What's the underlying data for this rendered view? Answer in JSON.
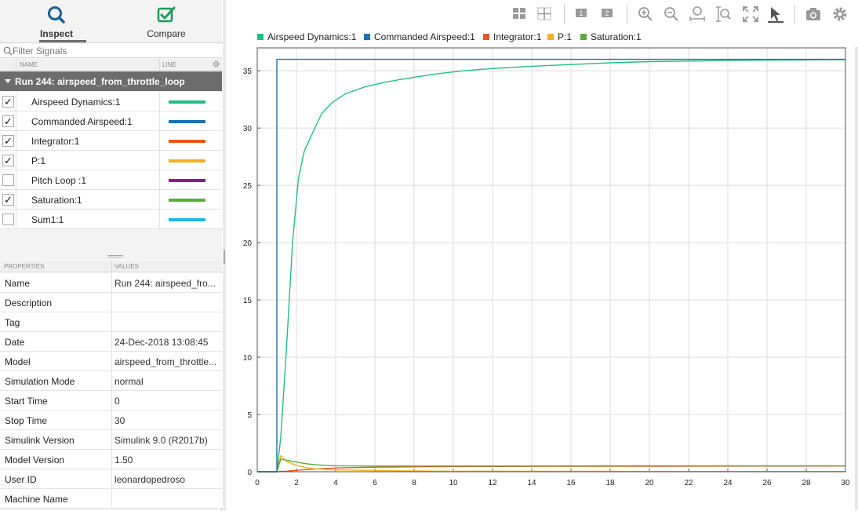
{
  "modes": {
    "inspect": {
      "label": "Inspect",
      "icon": "search-icon"
    },
    "compare": {
      "label": "Compare",
      "icon": "compare-checkbox-icon"
    }
  },
  "filter": {
    "placeholder": "Filter Signals"
  },
  "signal_table": {
    "headers": {
      "name": "NAME",
      "line": "LINE"
    },
    "run": {
      "label": "Run 244: airspeed_from_throttle_loop",
      "expanded": true
    },
    "signals": [
      {
        "name": "Airspeed Dynamics:1",
        "checked": true,
        "check_mark": "✓",
        "color": "#1fbf83"
      },
      {
        "name": "Commanded Airspeed:1",
        "checked": true,
        "check_mark": "✓",
        "color": "#1f6fb4"
      },
      {
        "name": "Integrator:1",
        "checked": true,
        "check_mark": "✓",
        "color": "#e8541c"
      },
      {
        "name": "P:1",
        "checked": true,
        "check_mark": "✓",
        "color": "#f0b11c"
      },
      {
        "name": "Pitch Loop :1",
        "checked": false,
        "check_mark": "",
        "color": "#8b1a93"
      },
      {
        "name": "Saturation:1",
        "checked": true,
        "check_mark": "✓",
        "color": "#5aac3e"
      },
      {
        "name": "Sum1:1",
        "checked": false,
        "check_mark": "",
        "color": "#21b6e6"
      }
    ]
  },
  "properties": {
    "headers": {
      "key": "PROPERTIES",
      "value": "VALUES"
    },
    "rows": [
      {
        "key": "Name",
        "value": "Run 244: airspeed_fro..."
      },
      {
        "key": "Description",
        "value": ""
      },
      {
        "key": "Tag",
        "value": ""
      },
      {
        "key": "Date",
        "value": "24-Dec-2018 13:08:45"
      },
      {
        "key": "Model",
        "value": "airspeed_from_throttle..."
      },
      {
        "key": "Simulation Mode",
        "value": "normal"
      },
      {
        "key": "Start Time",
        "value": "0"
      },
      {
        "key": "Stop Time",
        "value": "30"
      },
      {
        "key": "Simulink Version",
        "value": "Simulink 9.0 (R2017b)"
      },
      {
        "key": "Model Version",
        "value": "1.50"
      },
      {
        "key": "User ID",
        "value": "leonardopedroso"
      },
      {
        "key": "Machine Name",
        "value": ""
      }
    ]
  },
  "toolbar": {
    "icons": [
      "layout-grid-icon",
      "subplot-grid-icon",
      "subplot-1-icon",
      "subplot-2-icon",
      "zoom-in-icon",
      "zoom-out-icon",
      "zoom-x-icon",
      "zoom-y-icon",
      "fit-to-view-icon",
      "cursor-icon",
      "snapshot-camera-icon",
      "settings-gear-icon"
    ],
    "subplot_labels": [
      "1",
      "2"
    ]
  },
  "legend": [
    {
      "name": "Airspeed Dynamics:1",
      "color": "#1fbf83"
    },
    {
      "name": "Commanded Airspeed:1",
      "color": "#1f6fb4"
    },
    {
      "name": "Integrator:1",
      "color": "#e8541c"
    },
    {
      "name": "P:1",
      "color": "#f0b11c"
    },
    {
      "name": "Saturation:1",
      "color": "#5aac3e"
    }
  ],
  "chart_data": {
    "type": "line",
    "xlim": [
      0,
      30
    ],
    "ylim": [
      0,
      37
    ],
    "x_ticks": [
      "0",
      "2",
      "4",
      "6",
      "8",
      "10",
      "12",
      "14",
      "16",
      "18",
      "20",
      "22",
      "24",
      "26",
      "28",
      "30"
    ],
    "y_ticks": [
      "0",
      "5",
      "10",
      "15",
      "20",
      "25",
      "30",
      "35"
    ],
    "grid": true,
    "series": [
      {
        "name": "Commanded Airspeed:1",
        "color": "#1f6fb4",
        "x": [
          0,
          1,
          1,
          30
        ],
        "y": [
          0,
          0,
          36,
          36
        ]
      },
      {
        "name": "Airspeed Dynamics:1",
        "color": "#1fbf83",
        "x": [
          0,
          1,
          1.2,
          1.5,
          1.8,
          2.1,
          2.4,
          2.8,
          3.3,
          3.8,
          4.5,
          5.5,
          6.5,
          7.5,
          9,
          10.5,
          12,
          14,
          16,
          18,
          20,
          22,
          24,
          26,
          28,
          30
        ],
        "y": [
          0,
          0,
          3,
          11,
          20,
          25.6,
          28,
          29.5,
          31.3,
          32.2,
          33,
          33.6,
          34,
          34.3,
          34.7,
          35,
          35.2,
          35.4,
          35.55,
          35.7,
          35.8,
          35.85,
          35.9,
          35.93,
          35.95,
          35.97
        ]
      },
      {
        "name": "Integrator:1",
        "color": "#e8541c",
        "x": [
          0,
          1,
          1.5,
          2,
          3,
          4,
          6,
          8,
          10,
          15,
          20,
          25,
          30
        ],
        "y": [
          0,
          0,
          0.05,
          0.12,
          0.25,
          0.33,
          0.4,
          0.43,
          0.45,
          0.47,
          0.48,
          0.49,
          0.5
        ]
      },
      {
        "name": "P:1",
        "color": "#f0b11c",
        "x": [
          0,
          1,
          1.2,
          1.5,
          2,
          2.5,
          3,
          4,
          6,
          8,
          10,
          15,
          20,
          25,
          30
        ],
        "y": [
          0,
          0,
          1.4,
          0.9,
          0.55,
          0.35,
          0.25,
          0.16,
          0.1,
          0.07,
          0.05,
          0.04,
          0.03,
          0.02,
          0.02
        ]
      },
      {
        "name": "Saturation:1",
        "color": "#5aac3e",
        "x": [
          0,
          1,
          1.2,
          1.5,
          2,
          2.5,
          3,
          4,
          6,
          8,
          10,
          15,
          20,
          25,
          30
        ],
        "y": [
          0,
          0,
          1.1,
          1.0,
          0.85,
          0.7,
          0.6,
          0.52,
          0.5,
          0.5,
          0.5,
          0.51,
          0.52,
          0.52,
          0.52
        ]
      }
    ]
  }
}
